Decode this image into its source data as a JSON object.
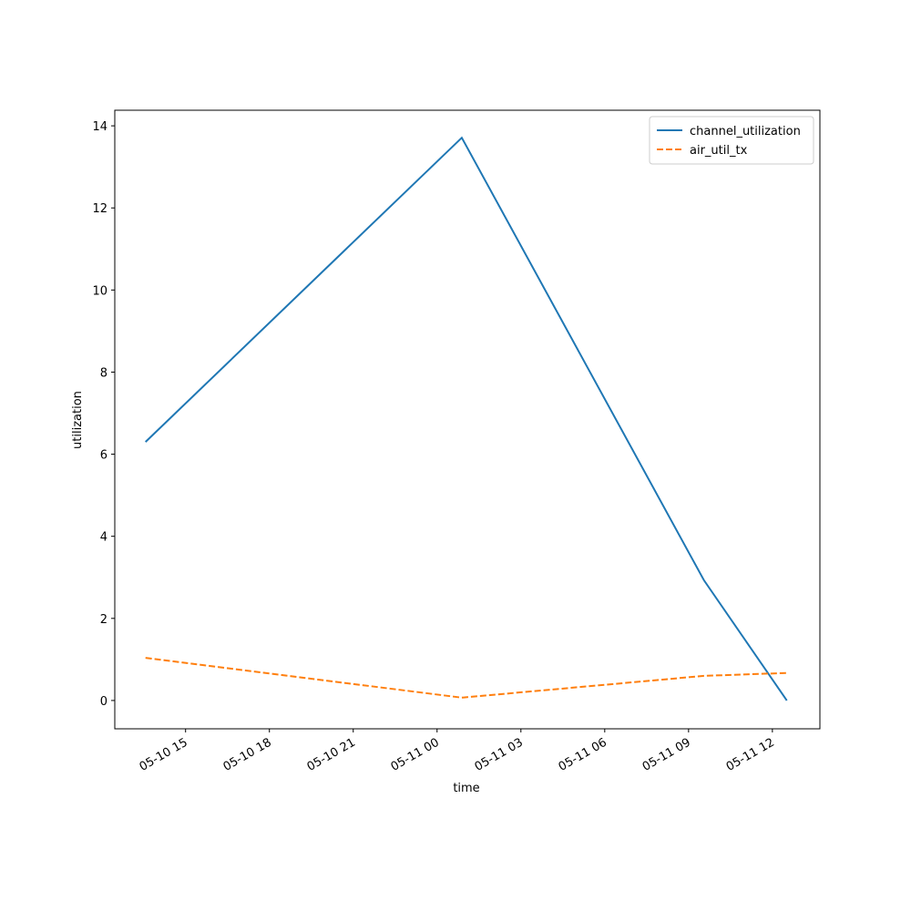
{
  "chart_data": {
    "type": "line",
    "xlabel": "time",
    "ylabel": "utilization",
    "x": [
      "05-10 13:34",
      "05-11 00:53",
      "05-11 09:33",
      "05-11 12:31"
    ],
    "series": [
      {
        "name": "channel_utilization",
        "color": "#1f77b4",
        "linestyle": "solid",
        "values": [
          6.3,
          13.71,
          2.93,
          0
        ]
      },
      {
        "name": "air_util_tx",
        "color": "#ff7f0e",
        "linestyle": "dashed",
        "values": [
          1.04,
          0.07,
          0.6,
          0.67
        ]
      }
    ],
    "xlim": [
      "05-10 12:28",
      "05-11 13:42"
    ],
    "xticks": [
      "05-10 15",
      "05-10 18",
      "05-10 21",
      "05-11 00",
      "05-11 03",
      "05-11 06",
      "05-11 09",
      "05-11 12"
    ],
    "ylim": [
      -0.69,
      14.38
    ],
    "yticks": [
      0,
      2,
      4,
      6,
      8,
      10,
      12,
      14
    ],
    "legend": "upper right",
    "grid": false
  }
}
